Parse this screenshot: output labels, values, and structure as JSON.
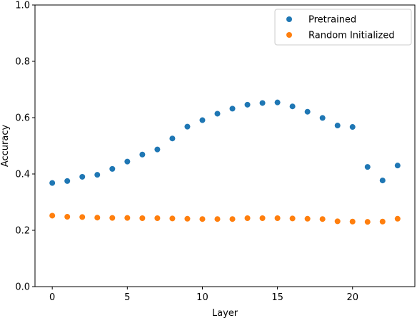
{
  "chart_data": {
    "type": "scatter",
    "title": "",
    "xlabel": "Layer",
    "ylabel": "Accuracy",
    "xlim": [
      -1.15,
      24.15
    ],
    "ylim": [
      0.0,
      1.0
    ],
    "xticks": [
      0,
      5,
      10,
      15,
      20
    ],
    "yticks": [
      0.0,
      0.2,
      0.4,
      0.6,
      0.8,
      1.0
    ],
    "xtick_labels": [
      "0",
      "5",
      "10",
      "15",
      "20"
    ],
    "ytick_labels": [
      "0.0",
      "0.2",
      "0.4",
      "0.6",
      "0.8",
      "1.0"
    ],
    "grid": false,
    "legend_position": "top-right",
    "x": [
      0,
      1,
      2,
      3,
      4,
      5,
      6,
      7,
      8,
      9,
      10,
      11,
      12,
      13,
      14,
      15,
      16,
      17,
      18,
      19,
      20,
      21,
      22,
      23
    ],
    "series": [
      {
        "name": "Pretrained",
        "color": "#1f77b4",
        "values": [
          0.368,
          0.375,
          0.39,
          0.397,
          0.418,
          0.444,
          0.469,
          0.487,
          0.526,
          0.568,
          0.591,
          0.614,
          0.632,
          0.646,
          0.652,
          0.654,
          0.64,
          0.621,
          0.599,
          0.572,
          0.567,
          0.425,
          0.377,
          0.43
        ]
      },
      {
        "name": "Random Initialized",
        "color": "#ff7f0e",
        "values": [
          0.252,
          0.248,
          0.247,
          0.245,
          0.244,
          0.244,
          0.243,
          0.243,
          0.242,
          0.241,
          0.24,
          0.24,
          0.24,
          0.243,
          0.243,
          0.243,
          0.242,
          0.241,
          0.24,
          0.232,
          0.231,
          0.23,
          0.231,
          0.241
        ]
      }
    ]
  }
}
